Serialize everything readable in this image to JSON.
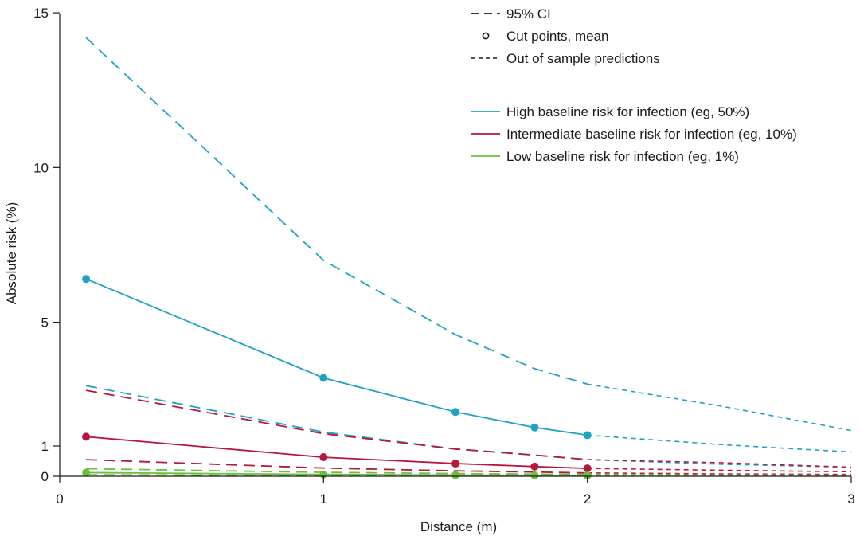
{
  "chart_data": {
    "type": "line",
    "xlabel": "Distance (m)",
    "ylabel": "Absolute risk (%)",
    "xlim": [
      0,
      3
    ],
    "ylim": [
      0,
      15
    ],
    "x_ticks": [
      0,
      1,
      2,
      3
    ],
    "y_ticks": [
      0,
      1,
      5,
      10,
      15
    ],
    "grid": false,
    "legend_position": "top-right",
    "style_legend": [
      {
        "label": "95% CI",
        "style": "long-dash"
      },
      {
        "label": "Cut points, mean",
        "style": "circle-marker"
      },
      {
        "label": "Out of sample predictions",
        "style": "short-dash"
      }
    ],
    "series": [
      {
        "name": "High baseline risk for infection (eg, 50%)",
        "color": "#1fa3c0",
        "mean_x": [
          0.1,
          1,
          1.5,
          1.8,
          2
        ],
        "mean": [
          6.4,
          3.2,
          2.1,
          1.6,
          1.35
        ],
        "ci_upper_x": [
          0.1,
          1,
          1.5,
          1.8,
          2
        ],
        "ci_upper": [
          14.2,
          7.0,
          4.6,
          3.5,
          3.0
        ],
        "ci_lower_x": [
          0.1,
          1,
          1.5,
          1.8,
          2
        ],
        "ci_lower": [
          2.95,
          1.45,
          0.9,
          0.7,
          0.55
        ],
        "pred_x": [
          2,
          2.5,
          3
        ],
        "pred": [
          1.35,
          1.05,
          0.8
        ],
        "pred_upper_x": [
          2,
          2.5,
          3
        ],
        "pred_upper": [
          3.0,
          2.3,
          1.5
        ],
        "pred_lower_x": [
          2,
          2.5,
          3
        ],
        "pred_lower": [
          0.55,
          0.4,
          0.3
        ]
      },
      {
        "name": "Intermediate baseline risk for infection (eg, 10%)",
        "color": "#b5173f",
        "mean_x": [
          0.1,
          1,
          1.5,
          1.8,
          2
        ],
        "mean": [
          1.3,
          0.63,
          0.42,
          0.32,
          0.26
        ],
        "ci_upper_x": [
          0.1,
          1,
          1.5,
          1.8,
          2
        ],
        "ci_upper": [
          2.8,
          1.4,
          0.9,
          0.7,
          0.55
        ],
        "ci_lower_x": [
          0.1,
          1,
          1.5,
          1.8,
          2
        ],
        "ci_lower": [
          0.55,
          0.27,
          0.18,
          0.14,
          0.11
        ],
        "pred_x": [
          2,
          2.5,
          3
        ],
        "pred": [
          0.26,
          0.2,
          0.15
        ],
        "pred_upper_x": [
          2,
          2.5,
          3
        ],
        "pred_upper": [
          0.55,
          0.45,
          0.3
        ],
        "pred_lower_x": [
          2,
          2.5,
          3
        ],
        "pred_lower": [
          0.11,
          0.08,
          0.06
        ]
      },
      {
        "name": "Low baseline risk for infection (eg, 1%)",
        "color": "#6cbf3c",
        "mean_x": [
          0.1,
          1,
          1.5,
          1.8,
          2
        ],
        "mean": [
          0.12,
          0.06,
          0.04,
          0.03,
          0.025
        ],
        "ci_upper_x": [
          0.1,
          1,
          1.5,
          1.8,
          2
        ],
        "ci_upper": [
          0.25,
          0.13,
          0.09,
          0.07,
          0.06
        ],
        "ci_lower_x": [
          0.1,
          1,
          1.5,
          1.8,
          2
        ],
        "ci_lower": [
          0.05,
          0.025,
          0.018,
          0.014,
          0.011
        ],
        "pred_x": [
          2,
          2.5,
          3
        ],
        "pred": [
          0.025,
          0.02,
          0.015
        ],
        "pred_upper_x": [
          2,
          2.5,
          3
        ],
        "pred_upper": [
          0.06,
          0.045,
          0.035
        ],
        "pred_lower_x": [
          2,
          2.5,
          3
        ],
        "pred_lower": [
          0.011,
          0.008,
          0.006
        ]
      }
    ]
  }
}
